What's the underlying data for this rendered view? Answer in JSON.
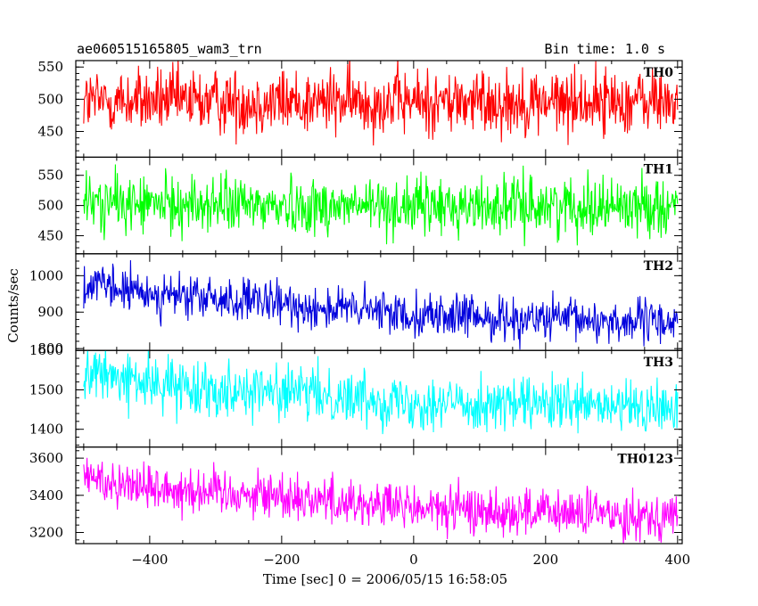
{
  "header": {
    "title": "ae060515165805_wam3_trn",
    "bin_time": "Bin time: 1.0 s"
  },
  "chart_data": {
    "type": "line",
    "title": "ae060515165805_wam3_trn",
    "subtitle": "Bin time: 1.0 s",
    "xlabel": "Time [sec] 0 = 2006/05/15 16:58:05",
    "ylabel": "Counts/sec",
    "xlim": [
      -512,
      407
    ],
    "x_ticks": [
      -400,
      -200,
      0,
      200,
      400
    ],
    "x_tick_labels": [
      "−400",
      "−200",
      "0",
      "200",
      "400"
    ],
    "x_range_data": [
      -500,
      400
    ],
    "bin_seconds": 1.0,
    "series": [
      {
        "name": "TH0",
        "color": "#ff0000",
        "ylim": [
          410,
          560
        ],
        "y_ticks": [
          450,
          500,
          550
        ],
        "y_tick_labels": [
          "450",
          "500",
          "550"
        ],
        "mean": [
          [
            -500,
            497
          ],
          [
            -400,
            497
          ],
          [
            -200,
            496
          ],
          [
            0,
            496
          ],
          [
            200,
            496
          ],
          [
            400,
            497
          ]
        ],
        "noise_sd": 26
      },
      {
        "name": "TH1",
        "color": "#00ff00",
        "ylim": [
          420,
          580
        ],
        "y_ticks": [
          450,
          500,
          550
        ],
        "y_tick_labels": [
          "450",
          "500",
          "550"
        ],
        "mean": [
          [
            -500,
            505
          ],
          [
            -400,
            502
          ],
          [
            -200,
            500
          ],
          [
            0,
            498
          ],
          [
            200,
            500
          ],
          [
            400,
            500
          ]
        ],
        "noise_sd": 24
      },
      {
        "name": "TH2",
        "color": "#0000dd",
        "ylim": [
          795,
          1060
        ],
        "y_ticks": [
          800,
          900,
          1000
        ],
        "y_tick_labels": [
          "800",
          "900",
          "1000"
        ],
        "mean": [
          [
            -500,
            975
          ],
          [
            -400,
            950
          ],
          [
            -200,
            920
          ],
          [
            0,
            895
          ],
          [
            100,
            885
          ],
          [
            200,
            880
          ],
          [
            300,
            875
          ],
          [
            400,
            872
          ]
        ],
        "noise_sd": 30
      },
      {
        "name": "TH3",
        "color": "#00ffff",
        "ylim": [
          1355,
          1600
        ],
        "y_ticks": [
          1400,
          1500,
          1600
        ],
        "y_tick_labels": [
          "1400",
          "1500",
          "1600"
        ],
        "mean": [
          [
            -500,
            1545
          ],
          [
            -400,
            1515
          ],
          [
            -200,
            1495
          ],
          [
            0,
            1470
          ],
          [
            200,
            1460
          ],
          [
            400,
            1450
          ]
        ],
        "noise_sd": 34
      },
      {
        "name": "TH0123",
        "color": "#ff00ff",
        "ylim": [
          3140,
          3660
        ],
        "y_ticks": [
          3200,
          3400,
          3600
        ],
        "y_tick_labels": [
          "3200",
          "3400",
          "3600"
        ],
        "mean": [
          [
            -500,
            3500
          ],
          [
            -400,
            3445
          ],
          [
            -200,
            3400
          ],
          [
            0,
            3330
          ],
          [
            200,
            3305
          ],
          [
            400,
            3290
          ]
        ],
        "noise_sd": 65
      }
    ],
    "grid": false,
    "legend": "panel labels top-right"
  }
}
